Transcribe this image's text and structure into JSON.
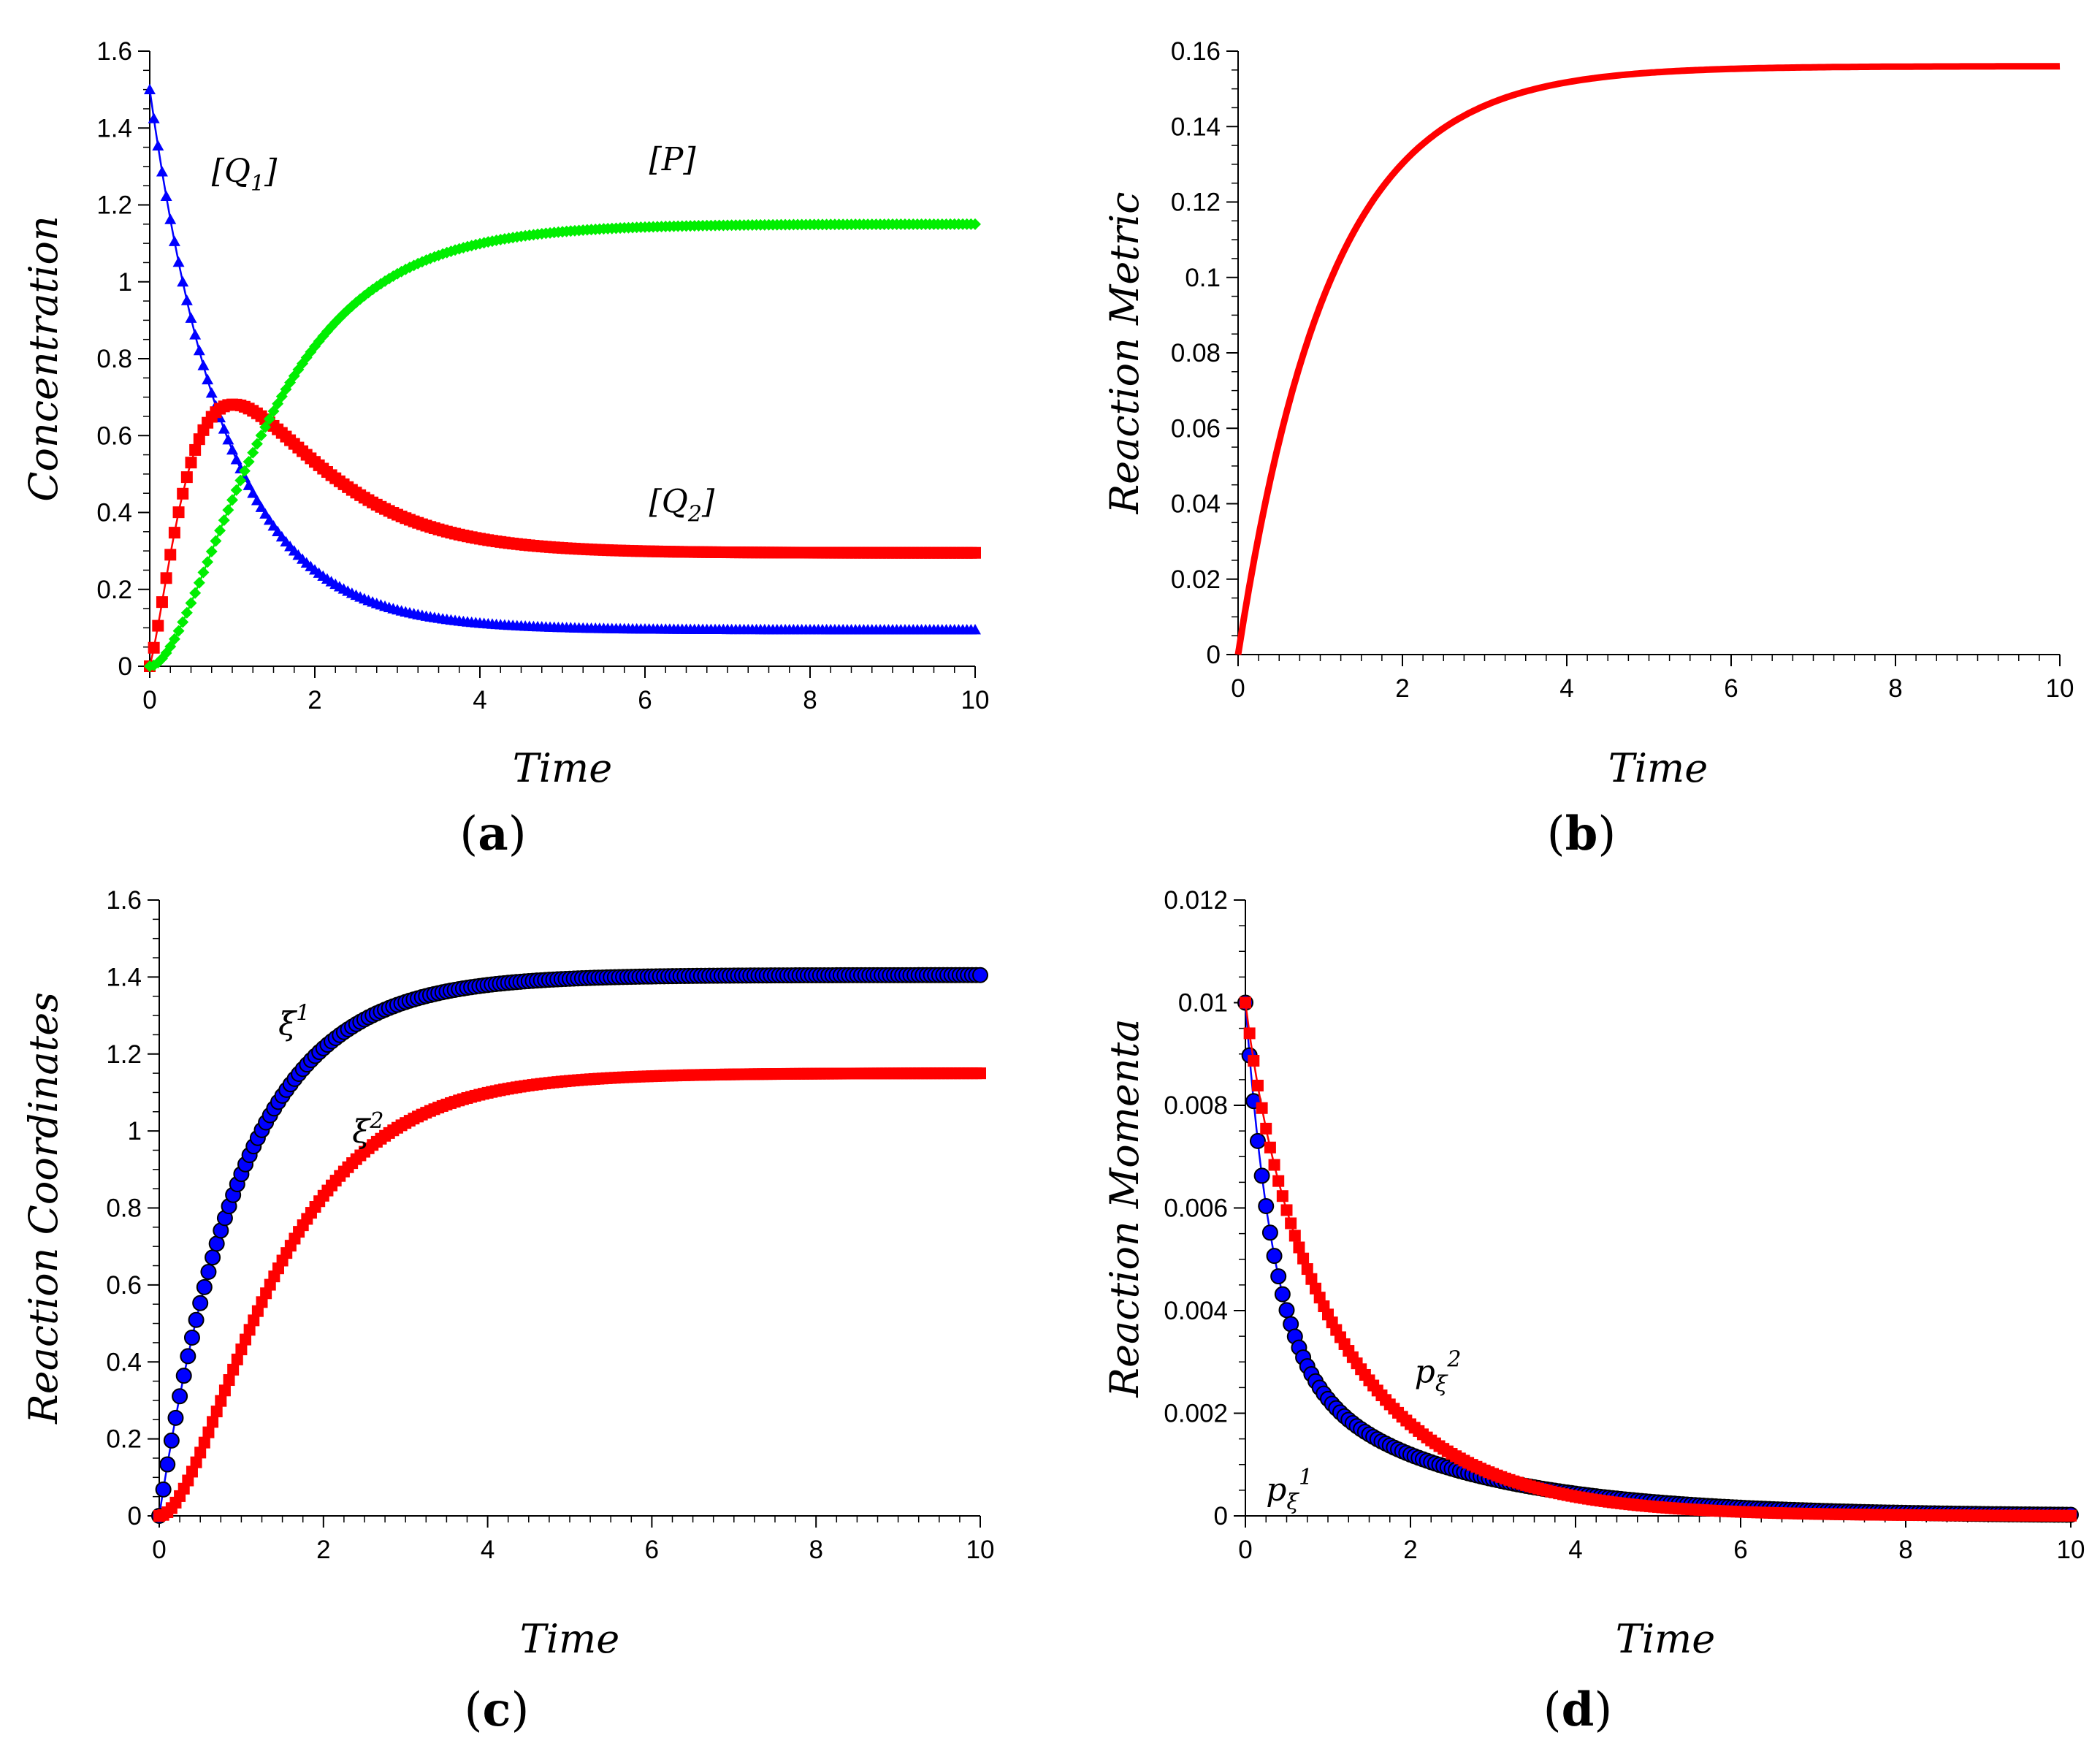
{
  "chart_data": [
    {
      "type": "line",
      "panel": "(a)",
      "panel_letter": "a",
      "xlabel": "Time",
      "ylabel": "Concentration",
      "xlim": [
        0,
        10
      ],
      "ylim": [
        0,
        1.6
      ],
      "xticks": [
        "0",
        "2",
        "4",
        "6",
        "8",
        "10"
      ],
      "yticks": [
        "0",
        "0.2",
        "0.4",
        "0.6",
        "0.8",
        "1",
        "1.2",
        "1.4",
        "1.6"
      ],
      "series": [
        {
          "name": "[Q1]",
          "color": "#0000ff",
          "marker": "triangle",
          "model": {
            "kind": "decay",
            "y0": 1.5,
            "yinf": 0.095,
            "rate": 1.1
          }
        },
        {
          "name": "[Q2]",
          "color": "#ff0000",
          "marker": "square",
          "model": {
            "kind": "hump",
            "a": 0.295,
            "b": 1.55,
            "rise": 2.8,
            "fall": 0.78
          }
        },
        {
          "name": "[P]",
          "color": "#00ee00",
          "marker": "diamond",
          "model": {
            "kind": "sigmoid",
            "yinf": 1.15,
            "rate": 0.95
          }
        }
      ],
      "annotations": [
        {
          "text": "[Q",
          "sub": "1",
          "close": "]",
          "at": [
            0.75,
            1.26
          ]
        },
        {
          "text": "[P]",
          "sub": "",
          "close": "",
          "at": [
            6.05,
            1.29
          ]
        },
        {
          "text": "[Q",
          "sub": "2",
          "close": "]",
          "at": [
            6.05,
            0.4
          ]
        }
      ]
    },
    {
      "type": "line",
      "panel": "(b)",
      "panel_letter": "b",
      "xlabel": "Time",
      "ylabel": "Reaction Metric",
      "xlim": [
        0,
        10
      ],
      "ylim": [
        0,
        0.16
      ],
      "xticks": [
        "0",
        "2",
        "4",
        "6",
        "8",
        "10"
      ],
      "yticks": [
        "0",
        "0.02",
        "0.04",
        "0.06",
        "0.08",
        "0.1",
        "0.12",
        "0.14",
        "0.16"
      ],
      "series": [
        {
          "name": "metric",
          "color": "#ff0000",
          "marker": "none",
          "model": {
            "kind": "rise",
            "yinf": 0.156,
            "rate": 0.9
          }
        }
      ],
      "annotations": []
    },
    {
      "type": "line",
      "panel": "(c)",
      "panel_letter": "c",
      "xlabel": "Time",
      "ylabel": "Reaction Coordinates",
      "xlim": [
        0,
        10
      ],
      "ylim": [
        0,
        1.6
      ],
      "xticks": [
        "0",
        "2",
        "4",
        "6",
        "8",
        "10"
      ],
      "yticks": [
        "0",
        "0.2",
        "0.4",
        "0.6",
        "0.8",
        "1",
        "1.2",
        "1.4",
        "1.6"
      ],
      "series": [
        {
          "name": "ξ1",
          "color": "#0000ff",
          "marker": "circle",
          "model": {
            "kind": "rise",
            "yinf": 1.405,
            "rate": 1.0
          }
        },
        {
          "name": "ξ2",
          "color": "#ff0000",
          "marker": "square",
          "model": {
            "kind": "sigmoid",
            "yinf": 1.15,
            "rate": 0.95
          }
        }
      ],
      "annotations": [
        {
          "text": "ξ",
          "sup": "1",
          "at": [
            1.45,
            1.25
          ]
        },
        {
          "text": "ξ",
          "sup": "2",
          "at": [
            2.35,
            0.97
          ]
        }
      ]
    },
    {
      "type": "line",
      "panel": "(d)",
      "panel_letter": "d",
      "xlabel": "Time",
      "ylabel": "Reaction Momenta",
      "xlim": [
        0,
        10
      ],
      "ylim": [
        0,
        0.012
      ],
      "xticks": [
        "0",
        "2",
        "4",
        "6",
        "8",
        "10"
      ],
      "yticks": [
        "0",
        "0.002",
        "0.004",
        "0.006",
        "0.008",
        "0.01",
        "0.012"
      ],
      "series": [
        {
          "name": "pξ1",
          "color": "#0000ff",
          "marker": "circle",
          "model": {
            "kind": "double",
            "a1": 0.0068,
            "r1": 3.0,
            "a2": 0.0032,
            "r2": 0.5
          }
        },
        {
          "name": "pξ2",
          "color": "#ff0000",
          "marker": "square",
          "model": {
            "kind": "double",
            "a1": 0.0015,
            "r1": 4.0,
            "a2": 0.0085,
            "r2": 0.78
          }
        }
      ],
      "annotations": [
        {
          "text": "p",
          "sub": "ξ",
          "sup": "2",
          "at": [
            2.05,
            0.0026
          ]
        },
        {
          "text": "p",
          "sub": "ξ",
          "sup": "1",
          "at": [
            0.25,
            0.0003
          ]
        }
      ]
    }
  ]
}
